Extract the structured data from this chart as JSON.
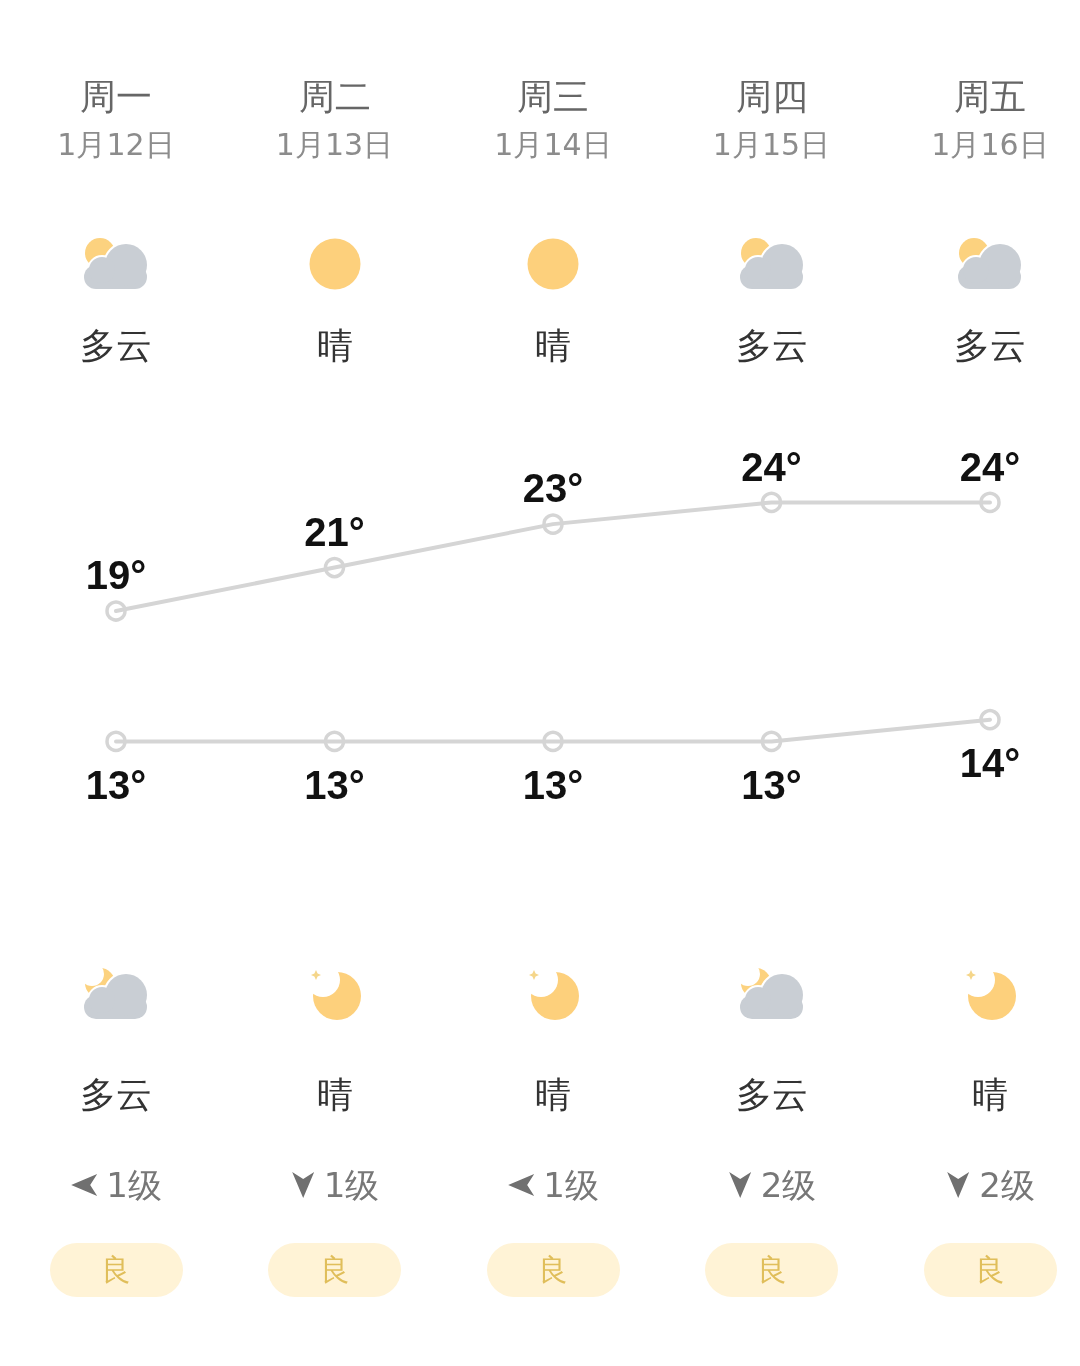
{
  "chart_data": {
    "type": "line",
    "categories": [
      "周一",
      "周二",
      "周三",
      "周四",
      "周五"
    ],
    "series": [
      {
        "color": "#d5d5d5",
        "values": [
          19,
          21,
          23,
          24,
          24
        ],
        "value_labels": [
          "19°",
          "21°",
          "23°",
          "24°",
          "24°"
        ]
      },
      {
        "color": "#d5d5d5",
        "values": [
          13,
          13,
          13,
          13,
          14
        ],
        "value_labels": [
          "13°",
          "13°",
          "13°",
          "13°",
          "14°"
        ]
      }
    ],
    "marker": "circle",
    "line_style": "solid",
    "tick_labels": "x",
    "annotations": [
      "1月12日",
      "多云",
      "多云",
      "1级",
      "良",
      "1月13日",
      "晴",
      "晴",
      "1级",
      "良",
      "1月14日",
      "晴",
      "晴",
      "1级",
      "良",
      "1月15日",
      "多云",
      "多云",
      "2级",
      "良",
      "1月16日",
      "多云",
      "晴",
      "2级",
      "良"
    ]
  }
}
